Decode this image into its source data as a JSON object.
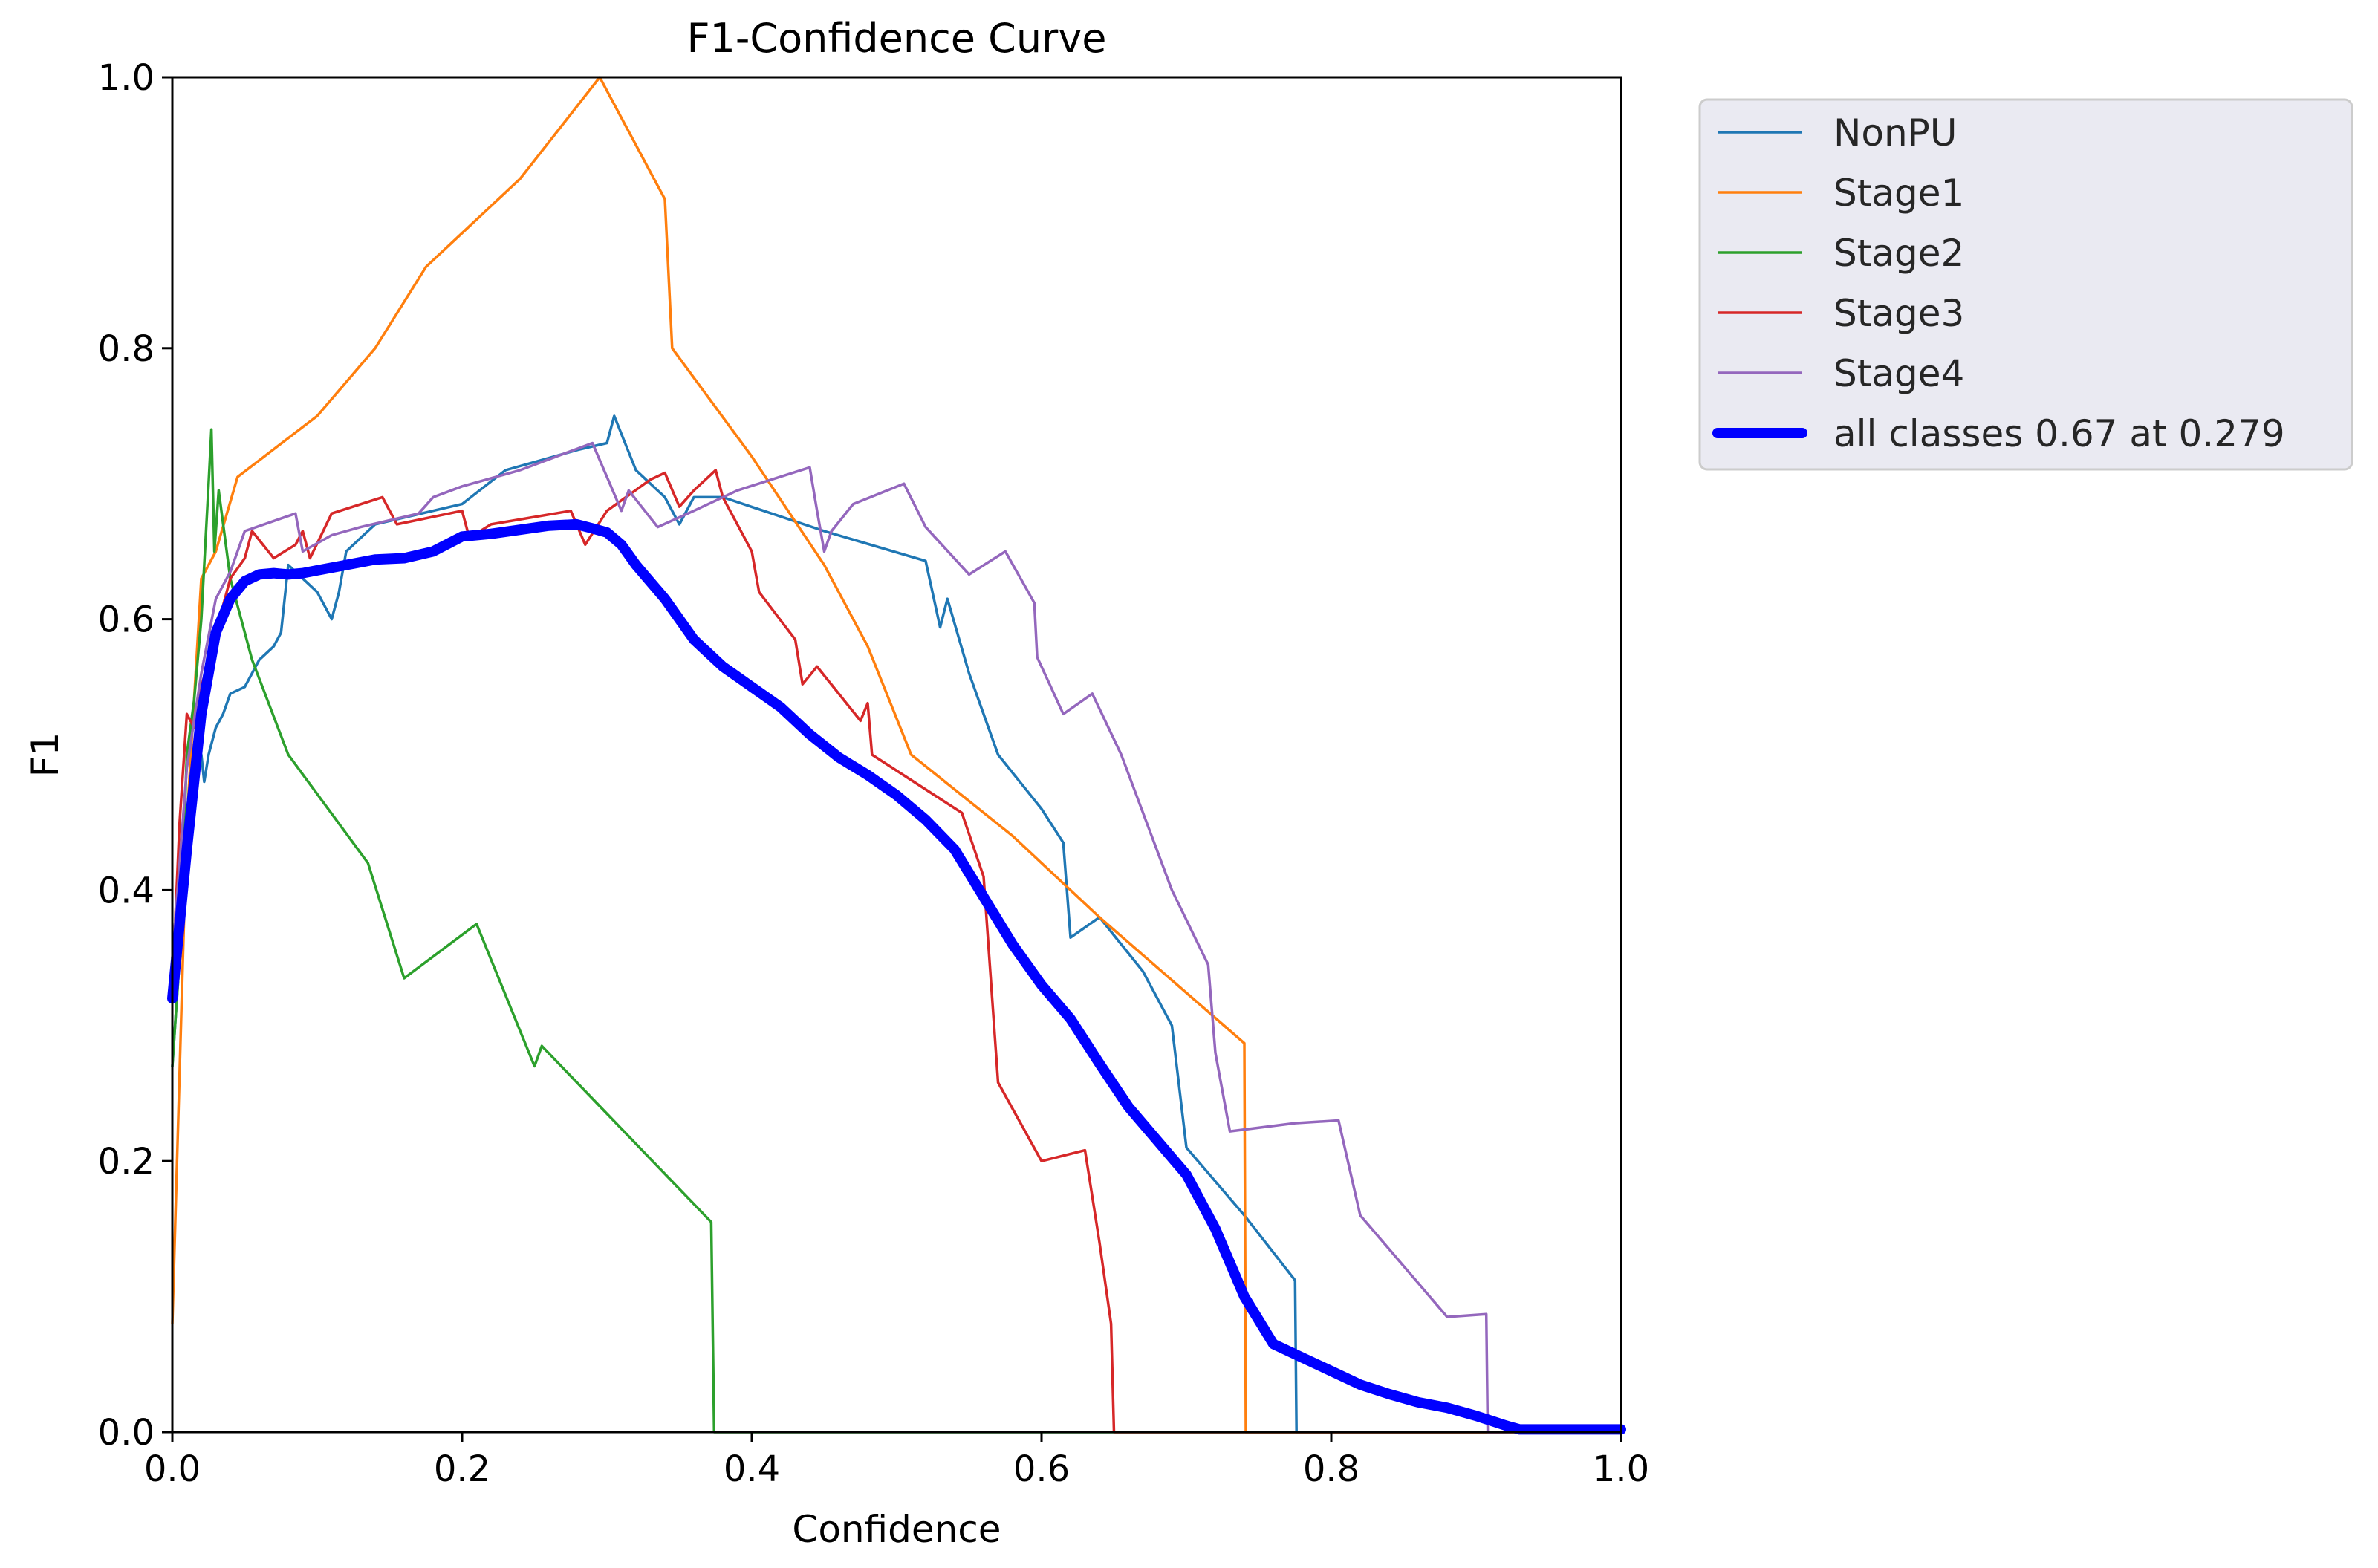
{
  "chart_data": {
    "type": "line",
    "title": "F1-Confidence Curve",
    "xlabel": "Confidence",
    "ylabel": "F1",
    "xlim": [
      0,
      1
    ],
    "ylim": [
      0,
      1
    ],
    "grid": false,
    "legend_position": "outside-top-right",
    "x_ticks": [
      "0.0",
      "0.2",
      "0.4",
      "0.6",
      "0.8",
      "1.0"
    ],
    "y_ticks": [
      "0.0",
      "0.2",
      "0.4",
      "0.6",
      "0.8",
      "1.0"
    ],
    "series": [
      {
        "name": "NonPU",
        "color": "#1f77b4",
        "points": [
          [
            0.0,
            0.27
          ],
          [
            0.005,
            0.35
          ],
          [
            0.01,
            0.42
          ],
          [
            0.015,
            0.47
          ],
          [
            0.02,
            0.5
          ],
          [
            0.022,
            0.48
          ],
          [
            0.025,
            0.5
          ],
          [
            0.03,
            0.52
          ],
          [
            0.035,
            0.53
          ],
          [
            0.04,
            0.545
          ],
          [
            0.05,
            0.55
          ],
          [
            0.06,
            0.57
          ],
          [
            0.07,
            0.58
          ],
          [
            0.075,
            0.59
          ],
          [
            0.08,
            0.64
          ],
          [
            0.09,
            0.63
          ],
          [
            0.1,
            0.62
          ],
          [
            0.11,
            0.6
          ],
          [
            0.115,
            0.62
          ],
          [
            0.12,
            0.65
          ],
          [
            0.14,
            0.67
          ],
          [
            0.2,
            0.685
          ],
          [
            0.23,
            0.71
          ],
          [
            0.28,
            0.725
          ],
          [
            0.3,
            0.73
          ],
          [
            0.305,
            0.75
          ],
          [
            0.32,
            0.71
          ],
          [
            0.34,
            0.69
          ],
          [
            0.35,
            0.67
          ],
          [
            0.36,
            0.69
          ],
          [
            0.38,
            0.69
          ],
          [
            0.45,
            0.665
          ],
          [
            0.52,
            0.643
          ],
          [
            0.53,
            0.594
          ],
          [
            0.535,
            0.615
          ],
          [
            0.55,
            0.56
          ],
          [
            0.57,
            0.5
          ],
          [
            0.6,
            0.46
          ],
          [
            0.615,
            0.435
          ],
          [
            0.62,
            0.365
          ],
          [
            0.64,
            0.38
          ],
          [
            0.67,
            0.34
          ],
          [
            0.69,
            0.3
          ],
          [
            0.7,
            0.21
          ],
          [
            0.74,
            0.16
          ],
          [
            0.775,
            0.112
          ],
          [
            0.776,
            0.0
          ],
          [
            1.0,
            0.0
          ]
        ]
      },
      {
        "name": "Stage1",
        "color": "#ff7f0e",
        "points": [
          [
            0.0,
            0.08
          ],
          [
            0.01,
            0.45
          ],
          [
            0.02,
            0.63
          ],
          [
            0.03,
            0.65
          ],
          [
            0.045,
            0.705
          ],
          [
            0.1,
            0.75
          ],
          [
            0.14,
            0.8
          ],
          [
            0.175,
            0.86
          ],
          [
            0.24,
            0.925
          ],
          [
            0.295,
            1.0
          ],
          [
            0.34,
            0.91
          ],
          [
            0.345,
            0.8
          ],
          [
            0.4,
            0.72
          ],
          [
            0.45,
            0.64
          ],
          [
            0.48,
            0.58
          ],
          [
            0.51,
            0.5
          ],
          [
            0.58,
            0.44
          ],
          [
            0.64,
            0.38
          ],
          [
            0.74,
            0.287
          ],
          [
            0.741,
            0.0
          ],
          [
            1.0,
            0.0
          ]
        ]
      },
      {
        "name": "Stage2",
        "color": "#2ca02c",
        "points": [
          [
            0.0,
            0.27
          ],
          [
            0.005,
            0.35
          ],
          [
            0.01,
            0.5
          ],
          [
            0.015,
            0.54
          ],
          [
            0.02,
            0.6
          ],
          [
            0.025,
            0.7
          ],
          [
            0.027,
            0.74
          ],
          [
            0.029,
            0.65
          ],
          [
            0.032,
            0.695
          ],
          [
            0.04,
            0.63
          ],
          [
            0.055,
            0.57
          ],
          [
            0.08,
            0.5
          ],
          [
            0.135,
            0.42
          ],
          [
            0.16,
            0.335
          ],
          [
            0.21,
            0.375
          ],
          [
            0.25,
            0.27
          ],
          [
            0.255,
            0.285
          ],
          [
            0.372,
            0.155
          ],
          [
            0.374,
            0.0
          ],
          [
            1.0,
            0.0
          ]
        ]
      },
      {
        "name": "Stage3",
        "color": "#d62728",
        "points": [
          [
            0.0,
            0.33
          ],
          [
            0.005,
            0.45
          ],
          [
            0.01,
            0.53
          ],
          [
            0.015,
            0.52
          ],
          [
            0.02,
            0.55
          ],
          [
            0.03,
            0.59
          ],
          [
            0.04,
            0.63
          ],
          [
            0.05,
            0.645
          ],
          [
            0.055,
            0.665
          ],
          [
            0.07,
            0.645
          ],
          [
            0.085,
            0.655
          ],
          [
            0.09,
            0.665
          ],
          [
            0.095,
            0.645
          ],
          [
            0.11,
            0.678
          ],
          [
            0.145,
            0.69
          ],
          [
            0.155,
            0.67
          ],
          [
            0.2,
            0.68
          ],
          [
            0.205,
            0.66
          ],
          [
            0.22,
            0.67
          ],
          [
            0.275,
            0.68
          ],
          [
            0.285,
            0.655
          ],
          [
            0.3,
            0.68
          ],
          [
            0.33,
            0.703
          ],
          [
            0.34,
            0.708
          ],
          [
            0.35,
            0.683
          ],
          [
            0.36,
            0.695
          ],
          [
            0.375,
            0.71
          ],
          [
            0.38,
            0.69
          ],
          [
            0.4,
            0.65
          ],
          [
            0.405,
            0.62
          ],
          [
            0.43,
            0.585
          ],
          [
            0.435,
            0.552
          ],
          [
            0.445,
            0.565
          ],
          [
            0.475,
            0.525
          ],
          [
            0.48,
            0.538
          ],
          [
            0.483,
            0.5
          ],
          [
            0.545,
            0.457
          ],
          [
            0.56,
            0.41
          ],
          [
            0.57,
            0.258
          ],
          [
            0.6,
            0.2
          ],
          [
            0.63,
            0.208
          ],
          [
            0.64,
            0.14
          ],
          [
            0.648,
            0.08
          ],
          [
            0.65,
            0.0
          ],
          [
            1.0,
            0.0
          ]
        ]
      },
      {
        "name": "Stage4",
        "color": "#9467bd",
        "points": [
          [
            0.0,
            0.35
          ],
          [
            0.005,
            0.42
          ],
          [
            0.01,
            0.49
          ],
          [
            0.02,
            0.56
          ],
          [
            0.03,
            0.615
          ],
          [
            0.04,
            0.635
          ],
          [
            0.05,
            0.665
          ],
          [
            0.085,
            0.678
          ],
          [
            0.09,
            0.65
          ],
          [
            0.11,
            0.662
          ],
          [
            0.13,
            0.668
          ],
          [
            0.17,
            0.678
          ],
          [
            0.18,
            0.69
          ],
          [
            0.2,
            0.698
          ],
          [
            0.24,
            0.71
          ],
          [
            0.29,
            0.73
          ],
          [
            0.3,
            0.705
          ],
          [
            0.31,
            0.68
          ],
          [
            0.315,
            0.695
          ],
          [
            0.335,
            0.668
          ],
          [
            0.36,
            0.68
          ],
          [
            0.39,
            0.695
          ],
          [
            0.44,
            0.712
          ],
          [
            0.445,
            0.68
          ],
          [
            0.45,
            0.65
          ],
          [
            0.455,
            0.665
          ],
          [
            0.47,
            0.685
          ],
          [
            0.505,
            0.7
          ],
          [
            0.52,
            0.668
          ],
          [
            0.55,
            0.633
          ],
          [
            0.575,
            0.65
          ],
          [
            0.595,
            0.612
          ],
          [
            0.597,
            0.572
          ],
          [
            0.615,
            0.53
          ],
          [
            0.635,
            0.545
          ],
          [
            0.655,
            0.5
          ],
          [
            0.69,
            0.4
          ],
          [
            0.715,
            0.345
          ],
          [
            0.72,
            0.28
          ],
          [
            0.73,
            0.222
          ],
          [
            0.775,
            0.228
          ],
          [
            0.805,
            0.23
          ],
          [
            0.82,
            0.16
          ],
          [
            0.88,
            0.085
          ],
          [
            0.907,
            0.087
          ],
          [
            0.908,
            0.0
          ],
          [
            1.0,
            0.0
          ]
        ]
      },
      {
        "name": "all classes 0.67 at 0.279",
        "color": "#0000ff",
        "bold": true,
        "points": [
          [
            0.0,
            0.32
          ],
          [
            0.01,
            0.43
          ],
          [
            0.02,
            0.53
          ],
          [
            0.03,
            0.59
          ],
          [
            0.04,
            0.615
          ],
          [
            0.05,
            0.628
          ],
          [
            0.06,
            0.633
          ],
          [
            0.07,
            0.634
          ],
          [
            0.08,
            0.633
          ],
          [
            0.09,
            0.634
          ],
          [
            0.1,
            0.636
          ],
          [
            0.12,
            0.64
          ],
          [
            0.14,
            0.644
          ],
          [
            0.16,
            0.645
          ],
          [
            0.18,
            0.65
          ],
          [
            0.2,
            0.661
          ],
          [
            0.22,
            0.663
          ],
          [
            0.24,
            0.666
          ],
          [
            0.26,
            0.669
          ],
          [
            0.279,
            0.67
          ],
          [
            0.29,
            0.667
          ],
          [
            0.3,
            0.664
          ],
          [
            0.31,
            0.655
          ],
          [
            0.32,
            0.64
          ],
          [
            0.34,
            0.615
          ],
          [
            0.36,
            0.585
          ],
          [
            0.38,
            0.565
          ],
          [
            0.4,
            0.55
          ],
          [
            0.42,
            0.535
          ],
          [
            0.44,
            0.515
          ],
          [
            0.46,
            0.498
          ],
          [
            0.48,
            0.485
          ],
          [
            0.5,
            0.47
          ],
          [
            0.52,
            0.452
          ],
          [
            0.54,
            0.43
          ],
          [
            0.56,
            0.395
          ],
          [
            0.58,
            0.36
          ],
          [
            0.6,
            0.33
          ],
          [
            0.62,
            0.305
          ],
          [
            0.64,
            0.272
          ],
          [
            0.66,
            0.24
          ],
          [
            0.68,
            0.215
          ],
          [
            0.7,
            0.19
          ],
          [
            0.72,
            0.15
          ],
          [
            0.74,
            0.1
          ],
          [
            0.76,
            0.065
          ],
          [
            0.78,
            0.055
          ],
          [
            0.8,
            0.045
          ],
          [
            0.82,
            0.035
          ],
          [
            0.84,
            0.028
          ],
          [
            0.86,
            0.022
          ],
          [
            0.88,
            0.018
          ],
          [
            0.9,
            0.012
          ],
          [
            0.92,
            0.005
          ],
          [
            0.93,
            0.002
          ],
          [
            1.0,
            0.002
          ]
        ]
      }
    ]
  }
}
